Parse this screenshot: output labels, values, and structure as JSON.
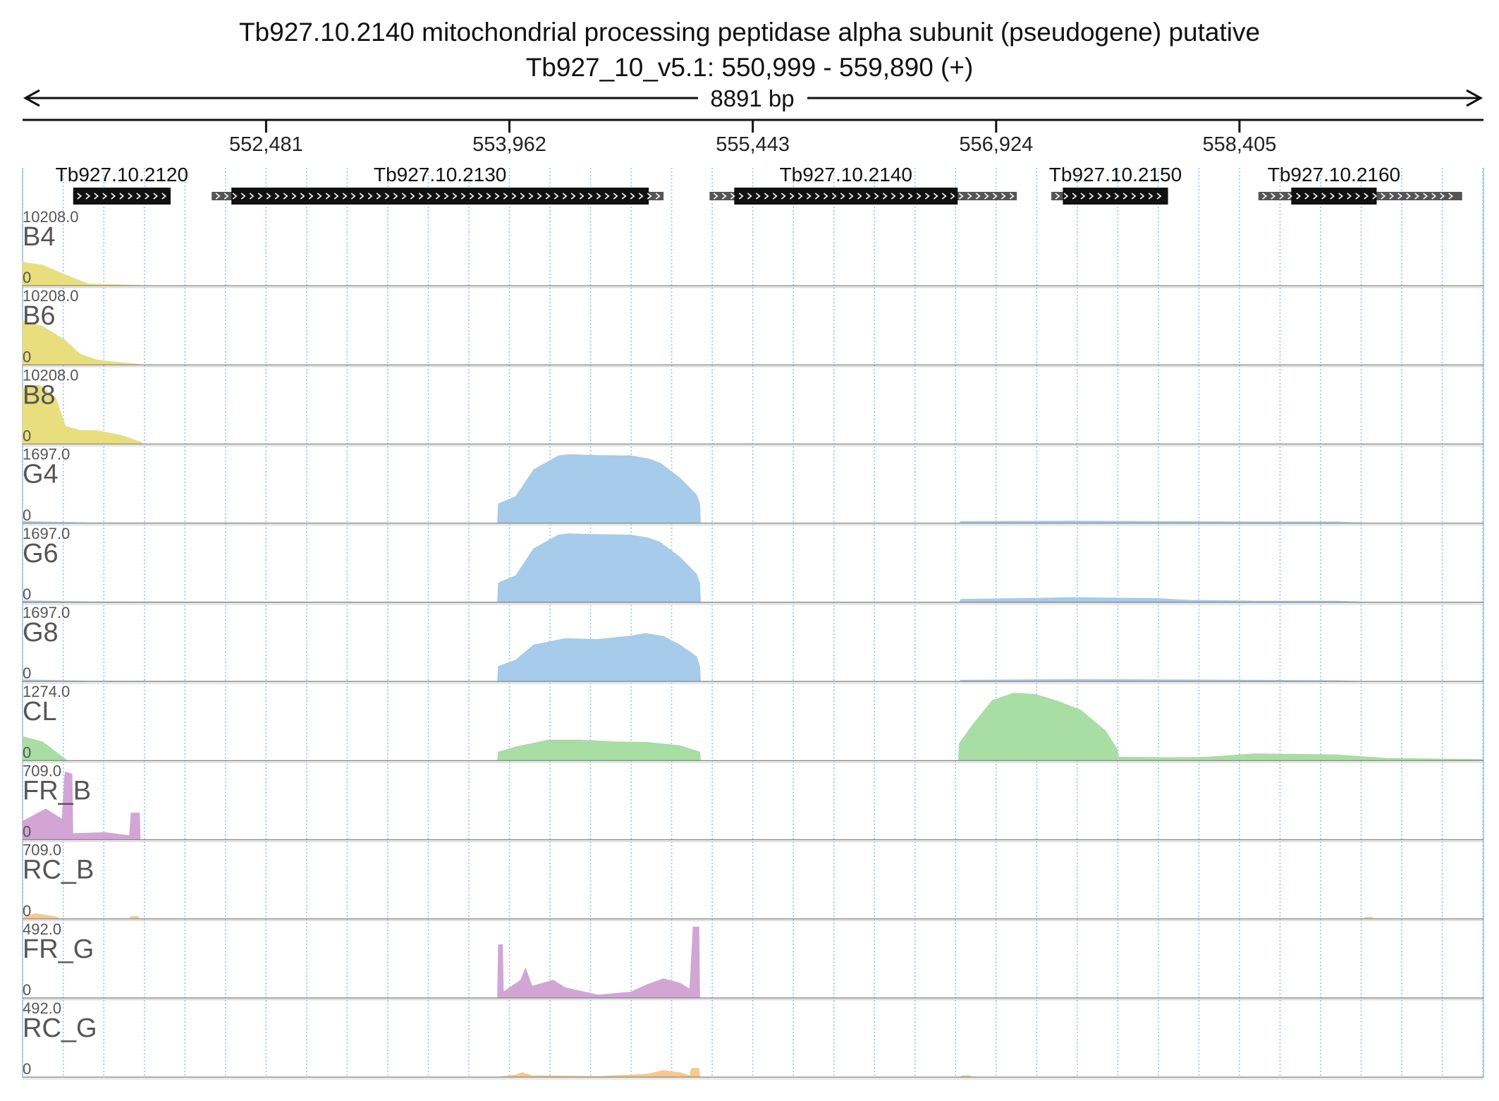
{
  "header": {
    "title_line1": "Tb927.10.2140  mitochondrial processing peptidase alpha subunit (pseudogene)  putative",
    "title_line2": "Tb927_10_v5.1: 550,999 - 559,890 (+)",
    "span_label": "8891 bp"
  },
  "chart_data": {
    "type": "area",
    "title": "Tb927.10.2140  mitochondrial processing peptidase alpha subunit (pseudogene)  putative",
    "subtitle": "Tb927_10_v5.1: 550,999 - 559,890 (+)",
    "chromosome": "Tb927_10_v5.1",
    "strand": "+",
    "xlim": [
      550999,
      559890
    ],
    "span_label": "8891 bp",
    "x_ticks": [
      552481,
      553962,
      555443,
      556924,
      558405
    ],
    "x_tick_labels": [
      "552,481",
      "553,962",
      "555,443",
      "556,924",
      "558,405"
    ],
    "genes": [
      {
        "name": "Tb927.10.2120",
        "start": 551307,
        "end": 551900,
        "cds_start": 551307,
        "cds_end": 551900
      },
      {
        "name": "Tb927.10.2130",
        "start": 552150,
        "end": 554900,
        "cds_start": 552270,
        "cds_end": 554810
      },
      {
        "name": "Tb927.10.2140",
        "start": 555180,
        "end": 557050,
        "cds_start": 555330,
        "cds_end": 556690
      },
      {
        "name": "Tb927.10.2150",
        "start": 557260,
        "end": 557970,
        "cds_start": 557330,
        "cds_end": 557970
      },
      {
        "name": "Tb927.10.2160",
        "start": 558520,
        "end": 559760,
        "cds_start": 558720,
        "cds_end": 559240
      }
    ],
    "series": [
      {
        "name": "B4",
        "ymax_label": "10208.0",
        "ymin_label": "0",
        "ymax": 10208,
        "color": "#e8de7e",
        "points": [
          [
            551000,
            3300
          ],
          [
            551120,
            2900
          ],
          [
            551240,
            1700
          ],
          [
            551400,
            250
          ],
          [
            551600,
            140
          ],
          [
            551720,
            40
          ],
          [
            551730,
            0
          ],
          [
            559890,
            0
          ]
        ]
      },
      {
        "name": "B6",
        "ymax_label": "10208.0",
        "ymin_label": "0",
        "ymax": 10208,
        "color": "#e8de7e",
        "points": [
          [
            551000,
            6200
          ],
          [
            551120,
            5400
          ],
          [
            551250,
            3600
          ],
          [
            551350,
            1500
          ],
          [
            551450,
            700
          ],
          [
            551600,
            300
          ],
          [
            551720,
            60
          ],
          [
            551730,
            0
          ],
          [
            559890,
            0
          ]
        ]
      },
      {
        "name": "B8",
        "ymax_label": "10208.0",
        "ymin_label": "0",
        "ymax": 10208,
        "color": "#e8de7e",
        "points": [
          [
            551000,
            7800
          ],
          [
            551100,
            8300
          ],
          [
            551200,
            6500
          ],
          [
            551260,
            2500
          ],
          [
            551350,
            1900
          ],
          [
            551450,
            1900
          ],
          [
            551600,
            1200
          ],
          [
            551720,
            280
          ],
          [
            551730,
            0
          ],
          [
            559890,
            0
          ]
        ]
      },
      {
        "name": "G4",
        "ymax_label": "1697.0",
        "ymin_label": "0",
        "ymax": 1697,
        "color": "#a7cbea",
        "points": [
          [
            551000,
            40
          ],
          [
            551400,
            10
          ],
          [
            553890,
            0
          ],
          [
            553895,
            450
          ],
          [
            554000,
            620
          ],
          [
            554110,
            1250
          ],
          [
            554260,
            1570
          ],
          [
            554320,
            1600
          ],
          [
            554500,
            1580
          ],
          [
            554700,
            1570
          ],
          [
            554810,
            1500
          ],
          [
            554880,
            1400
          ],
          [
            555000,
            1050
          ],
          [
            555100,
            660
          ],
          [
            555120,
            450
          ],
          [
            555125,
            0
          ],
          [
            556700,
            0
          ],
          [
            556710,
            40
          ],
          [
            557400,
            50
          ],
          [
            558000,
            40
          ],
          [
            558500,
            30
          ],
          [
            559000,
            30
          ],
          [
            559200,
            0
          ],
          [
            559890,
            0
          ]
        ]
      },
      {
        "name": "G6",
        "ymax_label": "1697.0",
        "ymin_label": "0",
        "ymax": 1697,
        "color": "#a7cbea",
        "points": [
          [
            551000,
            40
          ],
          [
            551400,
            10
          ],
          [
            553890,
            0
          ],
          [
            553895,
            450
          ],
          [
            554000,
            620
          ],
          [
            554110,
            1250
          ],
          [
            554260,
            1570
          ],
          [
            554320,
            1600
          ],
          [
            554500,
            1580
          ],
          [
            554700,
            1570
          ],
          [
            554810,
            1500
          ],
          [
            554880,
            1400
          ],
          [
            555000,
            1050
          ],
          [
            555100,
            660
          ],
          [
            555120,
            450
          ],
          [
            555125,
            0
          ],
          [
            556700,
            0
          ],
          [
            556710,
            70
          ],
          [
            557400,
            110
          ],
          [
            557900,
            90
          ],
          [
            558100,
            50
          ],
          [
            558500,
            30
          ],
          [
            559000,
            30
          ],
          [
            559200,
            0
          ],
          [
            559890,
            0
          ]
        ]
      },
      {
        "name": "G8",
        "ymax_label": "1697.0",
        "ymin_label": "0",
        "ymax": 1697,
        "color": "#a7cbea",
        "points": [
          [
            551000,
            40
          ],
          [
            551400,
            10
          ],
          [
            553890,
            0
          ],
          [
            553895,
            350
          ],
          [
            554000,
            500
          ],
          [
            554110,
            850
          ],
          [
            554300,
            1000
          ],
          [
            554500,
            980
          ],
          [
            554700,
            1060
          ],
          [
            554790,
            1120
          ],
          [
            554900,
            1050
          ],
          [
            555000,
            850
          ],
          [
            555100,
            580
          ],
          [
            555120,
            350
          ],
          [
            555125,
            0
          ],
          [
            556700,
            0
          ],
          [
            556710,
            30
          ],
          [
            557400,
            50
          ],
          [
            558000,
            40
          ],
          [
            558500,
            30
          ],
          [
            559000,
            20
          ],
          [
            559200,
            0
          ],
          [
            559890,
            0
          ]
        ]
      },
      {
        "name": "CL",
        "ymax_label": "1274.0",
        "ymin_label": "0",
        "ymax": 1274,
        "color": "#a8dda4",
        "points": [
          [
            551000,
            420
          ],
          [
            551120,
            330
          ],
          [
            551270,
            0
          ],
          [
            553890,
            0
          ],
          [
            553895,
            150
          ],
          [
            554000,
            240
          ],
          [
            554200,
            360
          ],
          [
            554400,
            360
          ],
          [
            554600,
            330
          ],
          [
            554800,
            320
          ],
          [
            555000,
            260
          ],
          [
            555120,
            150
          ],
          [
            555125,
            0
          ],
          [
            556695,
            0
          ],
          [
            556700,
            300
          ],
          [
            556780,
            620
          ],
          [
            556900,
            1050
          ],
          [
            557030,
            1180
          ],
          [
            557160,
            1160
          ],
          [
            557300,
            1040
          ],
          [
            557440,
            880
          ],
          [
            557590,
            520
          ],
          [
            557660,
            200
          ],
          [
            557670,
            60
          ],
          [
            558000,
            50
          ],
          [
            558200,
            60
          ],
          [
            558500,
            120
          ],
          [
            558800,
            110
          ],
          [
            559000,
            100
          ],
          [
            559200,
            60
          ],
          [
            559300,
            40
          ],
          [
            559890,
            20
          ]
        ]
      },
      {
        "name": "FR_B",
        "ymax_label": "709.0",
        "ymin_label": "0",
        "ymax": 709,
        "color": "#d3a5d5",
        "points": [
          [
            551000,
            180
          ],
          [
            551140,
            300
          ],
          [
            551240,
            200
          ],
          [
            551255,
            620
          ],
          [
            551260,
            660
          ],
          [
            551300,
            640
          ],
          [
            551305,
            60
          ],
          [
            551500,
            70
          ],
          [
            551650,
            40
          ],
          [
            551660,
            260
          ],
          [
            551710,
            260
          ],
          [
            551715,
            0
          ],
          [
            559890,
            0
          ]
        ]
      },
      {
        "name": "RC_B",
        "ymax_label": "709.0",
        "ymin_label": "0",
        "ymax": 709,
        "color": "#f8c98c",
        "points": [
          [
            551000,
            0
          ],
          [
            551020,
            30
          ],
          [
            551080,
            50
          ],
          [
            551200,
            20
          ],
          [
            551230,
            0
          ],
          [
            551650,
            0
          ],
          [
            551660,
            25
          ],
          [
            551700,
            25
          ],
          [
            551710,
            0
          ],
          [
            559160,
            0
          ],
          [
            559170,
            15
          ],
          [
            559210,
            15
          ],
          [
            559220,
            0
          ],
          [
            559890,
            0
          ]
        ]
      },
      {
        "name": "FR_G",
        "ymax_label": "492.0",
        "ymin_label": "0",
        "ymax": 492,
        "color": "#d3a5d5",
        "points": [
          [
            553890,
            0
          ],
          [
            553895,
            360
          ],
          [
            553920,
            360
          ],
          [
            553925,
            40
          ],
          [
            554030,
            120
          ],
          [
            554060,
            200
          ],
          [
            554100,
            80
          ],
          [
            554230,
            120
          ],
          [
            554300,
            70
          ],
          [
            554500,
            20
          ],
          [
            554700,
            40
          ],
          [
            554800,
            90
          ],
          [
            554900,
            130
          ],
          [
            555000,
            100
          ],
          [
            555060,
            60
          ],
          [
            555080,
            480
          ],
          [
            555115,
            480
          ],
          [
            555120,
            0
          ],
          [
            559890,
            0
          ]
        ]
      },
      {
        "name": "RC_G",
        "ymax_label": "492.0",
        "ymin_label": "0",
        "ymax": 492,
        "color": "#f8c98c",
        "points": [
          [
            553890,
            0
          ],
          [
            554000,
            15
          ],
          [
            554040,
            30
          ],
          [
            554100,
            10
          ],
          [
            554500,
            5
          ],
          [
            554800,
            20
          ],
          [
            554900,
            45
          ],
          [
            555000,
            30
          ],
          [
            555060,
            10
          ],
          [
            555070,
            60
          ],
          [
            555115,
            60
          ],
          [
            555120,
            0
          ],
          [
            556700,
            0
          ],
          [
            556720,
            10
          ],
          [
            556760,
            10
          ],
          [
            556780,
            0
          ],
          [
            559890,
            0
          ]
        ]
      }
    ]
  }
}
